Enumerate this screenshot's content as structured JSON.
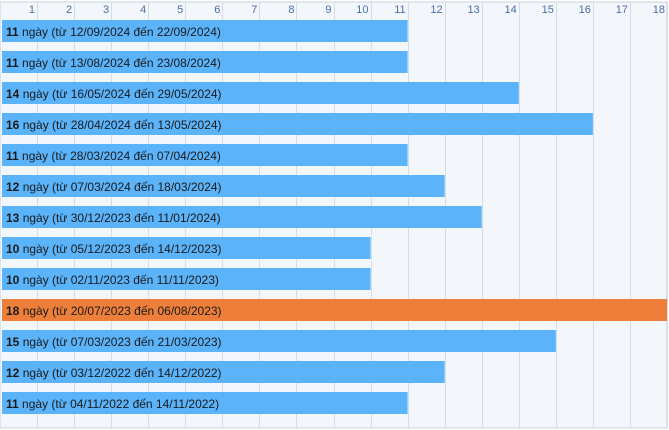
{
  "chart_data": {
    "type": "bar",
    "orientation": "horizontal",
    "title": "",
    "xlabel": "",
    "ylabel": "",
    "xlim": [
      0,
      18
    ],
    "x_ticks": [
      1,
      2,
      3,
      4,
      5,
      6,
      7,
      8,
      9,
      10,
      11,
      12,
      13,
      14,
      15,
      16,
      17,
      18
    ],
    "grid": true,
    "colors": {
      "default": "#5bb3fa",
      "highlight": "#ee7f3a"
    },
    "bars": [
      {
        "value": 11,
        "start": "12/09/2024",
        "end": "22/09/2024",
        "highlight": false
      },
      {
        "value": 11,
        "start": "13/08/2024",
        "end": "23/08/2024",
        "highlight": false
      },
      {
        "value": 14,
        "start": "16/05/2024",
        "end": "29/05/2024",
        "highlight": false
      },
      {
        "value": 16,
        "start": "28/04/2024",
        "end": "13/05/2024",
        "highlight": false
      },
      {
        "value": 11,
        "start": "28/03/2024",
        "end": "07/04/2024",
        "highlight": false
      },
      {
        "value": 12,
        "start": "07/03/2024",
        "end": "18/03/2024",
        "highlight": false
      },
      {
        "value": 13,
        "start": "30/12/2023",
        "end": "11/01/2024",
        "highlight": false
      },
      {
        "value": 10,
        "start": "05/12/2023",
        "end": "14/12/2023",
        "highlight": false
      },
      {
        "value": 10,
        "start": "02/11/2023",
        "end": "11/11/2023",
        "highlight": false
      },
      {
        "value": 18,
        "start": "20/07/2023",
        "end": "06/08/2023",
        "highlight": true
      },
      {
        "value": 15,
        "start": "07/03/2023",
        "end": "21/03/2023",
        "highlight": false
      },
      {
        "value": 12,
        "start": "03/12/2022",
        "end": "14/12/2022",
        "highlight": false
      },
      {
        "value": 11,
        "start": "04/11/2022",
        "end": "14/11/2022",
        "highlight": false
      }
    ],
    "label_text": {
      "unit": " ngày (từ ",
      "between": " đến ",
      "close": ")"
    }
  }
}
